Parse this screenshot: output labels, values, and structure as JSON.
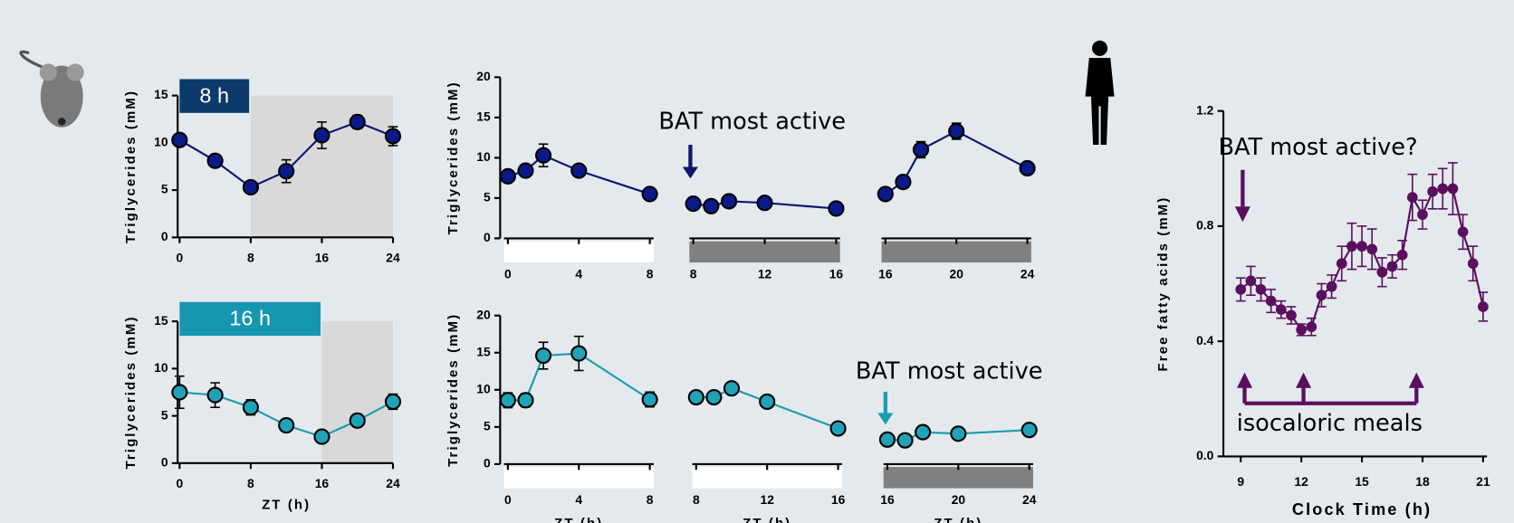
{
  "chart_data": [
    {
      "type": "line",
      "label": "8 h",
      "ylabel": "Triglycerides (mM)",
      "label_color": "#0b3a6b",
      "color": "#0d1570",
      "marker_color": "#0a1a8a",
      "shade_color": "#d9d9d9",
      "x": [
        0,
        4,
        8,
        12,
        16,
        20,
        24
      ],
      "values": [
        10.3,
        8.1,
        5.3,
        7.0,
        10.8,
        12.2,
        10.7
      ],
      "errors": [
        0.3,
        0.6,
        0.3,
        1.2,
        1.4,
        0.7,
        1.0
      ],
      "shaded_x": [
        8,
        24
      ],
      "xlim": [
        0,
        24
      ],
      "xticks": [
        0,
        8,
        16,
        24
      ],
      "ylim": [
        0,
        15
      ],
      "yticks": [
        0,
        5,
        10,
        15
      ]
    },
    {
      "type": "line",
      "label": "16 h",
      "ylabel": "Triglycerides (mM)",
      "xlabel": "ZT (h)",
      "label_color": "#1597b0",
      "color": "#1b9bb0",
      "marker_color": "#1fa3b8",
      "shade_color": "#d9d9d9",
      "x": [
        0,
        4,
        8,
        12,
        16,
        20,
        24
      ],
      "values": [
        7.5,
        7.2,
        5.9,
        4.0,
        2.8,
        4.5,
        6.5
      ],
      "errors": [
        1.7,
        1.3,
        0.8,
        0.3,
        0.3,
        0.4,
        0.8
      ],
      "shaded_x": [
        16,
        24
      ],
      "xlim": [
        0,
        24
      ],
      "xticks": [
        0,
        8,
        16,
        24
      ],
      "ylim": [
        0,
        15
      ],
      "yticks": [
        0,
        5,
        10,
        15
      ]
    },
    {
      "type": "segmented_line",
      "ylabel": "Triglycerides (mM)",
      "annotation": "BAT most active",
      "color": "#0d1570",
      "marker_color": "#0a1a8a",
      "ylim": [
        0,
        20
      ],
      "yticks": [
        0,
        5,
        10,
        15,
        20
      ],
      "segments": [
        {
          "x": [
            0,
            1,
            2,
            4,
            8
          ],
          "values": [
            7.7,
            8.4,
            10.3,
            8.4,
            5.5
          ],
          "errors": [
            0.5,
            0.5,
            1.4,
            0.5,
            0.4
          ],
          "xlim": [
            0,
            8
          ],
          "xticks": [
            0,
            4,
            8
          ],
          "bar_color": "#ffffff"
        },
        {
          "x": [
            8,
            9,
            10,
            12,
            16
          ],
          "values": [
            4.3,
            4.0,
            4.6,
            4.4,
            3.7
          ],
          "errors": [
            0.3,
            0.3,
            0.3,
            0.3,
            0.3
          ],
          "xlim": [
            8,
            16
          ],
          "xticks": [
            8,
            12,
            16
          ],
          "bar_color": "#808080"
        },
        {
          "x": [
            16,
            17,
            18,
            20,
            24
          ],
          "values": [
            5.5,
            7.0,
            11.0,
            13.3,
            8.7
          ],
          "errors": [
            0.4,
            0.4,
            1.0,
            1.0,
            0.4
          ],
          "xlim": [
            16,
            24
          ],
          "xticks": [
            16,
            20,
            24
          ],
          "bar_color": "#808080"
        }
      ]
    },
    {
      "type": "segmented_line",
      "ylabel": "Triglycerides (mM)",
      "xlabel": "ZT (h)",
      "annotation": "BAT most active",
      "color": "#1b9bb0",
      "marker_color": "#1fa3b8",
      "ylim": [
        0,
        20
      ],
      "yticks": [
        0,
        5,
        10,
        15,
        20
      ],
      "segments": [
        {
          "x": [
            0,
            1,
            2,
            4,
            8
          ],
          "values": [
            8.6,
            8.6,
            14.6,
            14.9,
            8.7
          ],
          "errors": [
            1.0,
            0.9,
            1.8,
            2.3,
            1.0
          ],
          "xlim": [
            0,
            8
          ],
          "xticks": [
            0,
            4,
            8
          ],
          "bar_color": "#ffffff"
        },
        {
          "x": [
            8,
            9,
            10,
            12,
            16
          ],
          "values": [
            9.0,
            9.0,
            10.2,
            8.4,
            4.8
          ],
          "errors": [
            0.3,
            0.3,
            0.4,
            0.4,
            0.3
          ],
          "xlim": [
            8,
            16
          ],
          "xticks": [
            8,
            12,
            16
          ],
          "bar_color": "#ffffff"
        },
        {
          "x": [
            16,
            17,
            18,
            20,
            24
          ],
          "values": [
            3.3,
            3.2,
            4.3,
            4.1,
            4.6
          ],
          "errors": [
            0.3,
            0.3,
            0.3,
            0.3,
            0.3
          ],
          "xlim": [
            16,
            24
          ],
          "xticks": [
            16,
            20,
            24
          ],
          "bar_color": "#808080"
        }
      ]
    },
    {
      "type": "line",
      "ylabel": "Free fatty acids (mM)",
      "xlabel": "Clock Time (h)",
      "annotations": [
        "BAT most active?",
        "isocaloric meals"
      ],
      "color": "#5a0f5e",
      "marker_color": "#5a0f5e",
      "x": [
        9,
        9.5,
        10,
        10.5,
        11,
        11.5,
        12,
        12.5,
        13,
        13.5,
        14,
        14.5,
        15,
        15.5,
        16,
        16.5,
        17,
        17.5,
        18,
        18.5,
        19,
        19.5,
        20,
        20.5,
        21
      ],
      "values": [
        0.58,
        0.61,
        0.58,
        0.54,
        0.51,
        0.49,
        0.44,
        0.45,
        0.56,
        0.59,
        0.67,
        0.73,
        0.73,
        0.72,
        0.64,
        0.66,
        0.7,
        0.9,
        0.84,
        0.92,
        0.93,
        0.93,
        0.78,
        0.67,
        0.52
      ],
      "errors": [
        0.04,
        0.05,
        0.04,
        0.04,
        0.03,
        0.03,
        0.02,
        0.03,
        0.04,
        0.04,
        0.06,
        0.08,
        0.07,
        0.07,
        0.05,
        0.04,
        0.05,
        0.08,
        0.05,
        0.06,
        0.07,
        0.09,
        0.06,
        0.06,
        0.05
      ],
      "xlim": [
        9,
        21
      ],
      "xticks": [
        9,
        12,
        15,
        18,
        21
      ],
      "ylim": [
        0,
        1.2
      ],
      "yticks": [
        {
          "value": 0,
          "label": "0.0"
        },
        0.4,
        0.8,
        1.2
      ]
    }
  ]
}
